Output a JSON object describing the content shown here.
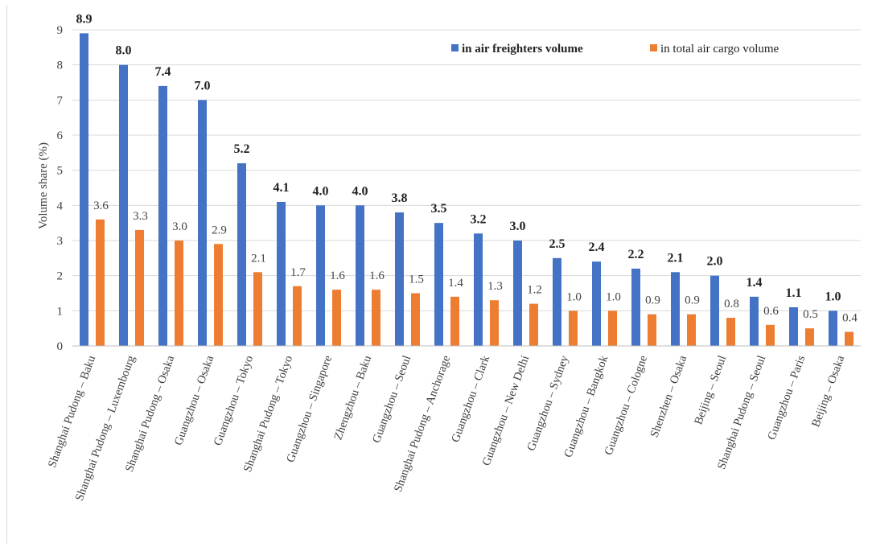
{
  "colors": {
    "series1": "#4472C4",
    "series2": "#ED7D31",
    "gridline": "#d9d9d9",
    "axis": "#bfbfbf"
  },
  "chart_data": {
    "type": "bar",
    "ylabel": "Volume share (%)",
    "xlabel": "",
    "ylim": [
      0,
      9
    ],
    "yticks": [
      0,
      1,
      2,
      3,
      4,
      5,
      6,
      7,
      8,
      9
    ],
    "grid": true,
    "legend_position": "top-right",
    "categories": [
      "Shanghai Pudong – Baku",
      "Shanghai Pudong – Luxembourg",
      "Shanghai Pudong – Osaka",
      "Guangzhou – Osaka",
      "Guangzhou – Tokyo",
      "Shanghai Pudong – Tokyo",
      "Guangzhou – Singapore",
      "Zhengzhou – Baku",
      "Guangzhou – Seoul",
      "Shanghai Pudong – Anchorage",
      "Guangzhou – Clark",
      "Guangzhou – New Delhi",
      "Guangzhou – Sydney",
      "Guangzhou – Bangkok",
      "Guangzhou – Cologne",
      "Shenzhen – Osaka",
      "Beijing – Seoul",
      "Shanghai Pudong – Seoul",
      "Guangzhou – Paris",
      "Beijing – Osaka"
    ],
    "series": [
      {
        "name": "in air freighters volume",
        "values": [
          8.9,
          8.0,
          7.4,
          7.0,
          5.2,
          4.1,
          4.0,
          4.0,
          3.8,
          3.5,
          3.2,
          3.0,
          2.5,
          2.4,
          2.2,
          2.1,
          2.0,
          1.4,
          1.1,
          1.0
        ],
        "labels": [
          "8.9",
          "8.0",
          "7.4",
          "7.0",
          "5.2",
          "4.1",
          "4.0",
          "4.0",
          "3.8",
          "3.5",
          "3.2",
          "3.0",
          "2.5",
          "2.4",
          "2.2",
          "2.1",
          "2.0",
          "1.4",
          "1.1",
          "1.0"
        ]
      },
      {
        "name": "in total air cargo volume",
        "values": [
          3.6,
          3.3,
          3.0,
          2.9,
          2.1,
          1.7,
          1.6,
          1.6,
          1.5,
          1.4,
          1.3,
          1.2,
          1.0,
          1.0,
          0.9,
          0.9,
          0.8,
          0.6,
          0.5,
          0.4
        ],
        "labels": [
          "3.6",
          "3.3",
          "3.0",
          "2.9",
          "2.1",
          "1.7",
          "1.6",
          "1.6",
          "1.5",
          "1.4",
          "1.3",
          "1.2",
          "1.0",
          "1.0",
          "0.9",
          "0.9",
          "0.8",
          "0.6",
          "0.5",
          "0.4"
        ]
      }
    ]
  }
}
